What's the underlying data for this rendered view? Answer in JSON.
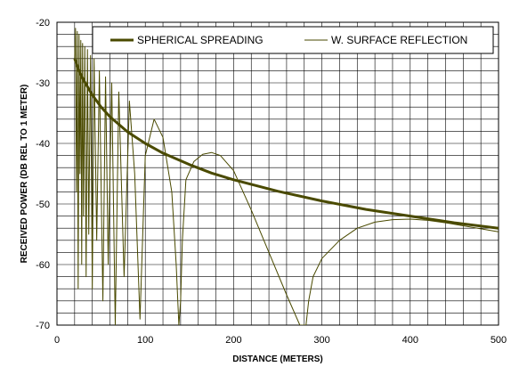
{
  "chart_data": {
    "type": "line",
    "title": "",
    "xlabel": "DISTANCE (METERS)",
    "ylabel": "RECEIVED POWER (DB REL TO 1 METER)",
    "xlim": [
      0,
      500
    ],
    "ylim": [
      -70,
      -20
    ],
    "x_ticks": [
      0,
      100,
      200,
      300,
      400,
      500
    ],
    "y_ticks": [
      -20,
      -30,
      -40,
      -50,
      -60,
      -70
    ],
    "x_tick_labels": [
      "0",
      "100",
      "200",
      "300",
      "400",
      "500"
    ],
    "y_tick_labels": [
      "-20",
      "-30",
      "-40",
      "-50",
      "-60",
      "-70"
    ],
    "grid": true,
    "grid_x_step": 20,
    "grid_y_step": 2,
    "legend": {
      "placement": "top-right",
      "entries": [
        "SPHERICAL SPREADING",
        "W. SURFACE REFLECTION"
      ]
    },
    "series": [
      {
        "name": "SPHERICAL SPREADING",
        "color": "#4a4a00",
        "style": "thick",
        "x": [
          20,
          25,
          30,
          40,
          50,
          60,
          80,
          100,
          120,
          150,
          175,
          200,
          250,
          300,
          350,
          400,
          450,
          500
        ],
        "y": [
          -26.0,
          -28.0,
          -29.5,
          -32.0,
          -34.0,
          -35.6,
          -38.1,
          -40.0,
          -41.6,
          -43.5,
          -44.9,
          -46.0,
          -47.9,
          -49.5,
          -50.9,
          -52.0,
          -53.1,
          -54.0
        ]
      },
      {
        "name": "W. SURFACE REFLECTION",
        "color": "#4a4a00",
        "style": "thin",
        "x": [
          20,
          21,
          22,
          23,
          24,
          25,
          26,
          27,
          28,
          29,
          30,
          31.5,
          33,
          34.5,
          36,
          38,
          40,
          42,
          45,
          48,
          52,
          55,
          58,
          62,
          66,
          70,
          76,
          82,
          88,
          94,
          100,
          110,
          120,
          130,
          135,
          138,
          140,
          142,
          146,
          155,
          165,
          175,
          185,
          200,
          220,
          240,
          260,
          275,
          282,
          285,
          290,
          300,
          320,
          340,
          360,
          380,
          400,
          420,
          440,
          460,
          480,
          500
        ],
        "y": [
          -26.0,
          -21.0,
          -48.0,
          -21.5,
          -64.0,
          -22.0,
          -45.0,
          -23.0,
          -60.0,
          -23.5,
          -52.0,
          -24.0,
          -62.0,
          -24.5,
          -55.0,
          -25.5,
          -64.0,
          -26.0,
          -56.0,
          -28.0,
          -66.0,
          -29.0,
          -60.0,
          -30.0,
          -70.0,
          -31.5,
          -62.0,
          -33.0,
          -45.0,
          -69.0,
          -42.0,
          -36.0,
          -39.0,
          -48.0,
          -60.0,
          -70.0,
          -66.0,
          -56.0,
          -46.0,
          -43.0,
          -41.8,
          -41.5,
          -42.0,
          -44.5,
          -51.0,
          -58.0,
          -65.0,
          -70.0,
          -70.0,
          -66.0,
          -62.0,
          -59.0,
          -56.0,
          -54.0,
          -53.0,
          -52.6,
          -52.5,
          -52.7,
          -53.1,
          -53.6,
          -54.1,
          -54.6
        ]
      }
    ]
  }
}
